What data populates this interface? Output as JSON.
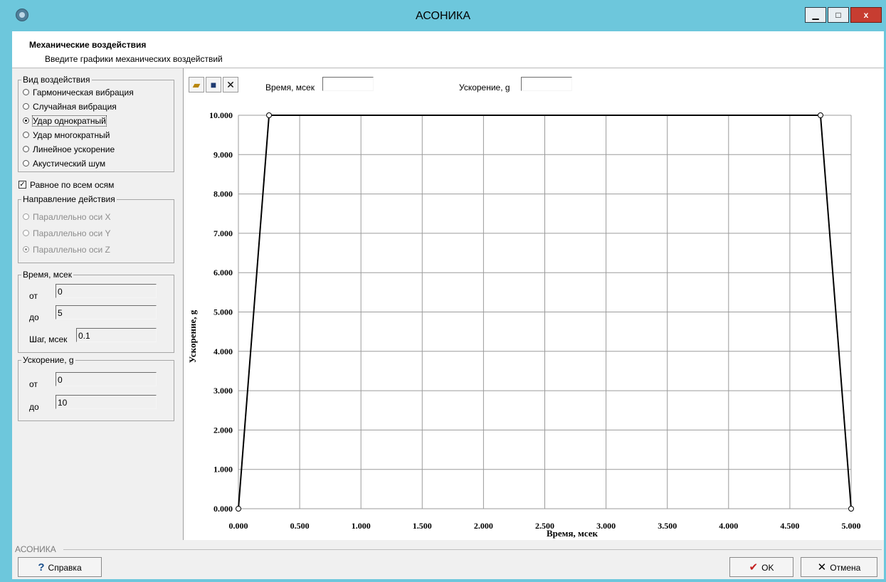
{
  "window": {
    "title": "АСОНИКА",
    "controls": {
      "minimize": "▁",
      "maximize": "□",
      "close": "x"
    }
  },
  "header": {
    "title": "Механические воздействия",
    "subtitle": "Введите графики механических воздействий"
  },
  "impact_type": {
    "title": "Вид воздействия",
    "options": [
      {
        "label": "Гармоническая вибрация",
        "checked": false
      },
      {
        "label": "Случайная вибрация",
        "checked": false
      },
      {
        "label": "Удар однократный",
        "checked": true
      },
      {
        "label": "Удар многократный",
        "checked": false
      },
      {
        "label": "Линейное ускорение",
        "checked": false
      },
      {
        "label": "Акустический шум",
        "checked": false
      }
    ]
  },
  "equal_axes": {
    "label": "Равное по всем осям",
    "checked": true
  },
  "direction": {
    "title": "Направление действия",
    "options": [
      {
        "label": "Параллельно оси X",
        "checked": false
      },
      {
        "label": "Параллельно оси Y",
        "checked": false
      },
      {
        "label": "Параллельно оси Z",
        "checked": true
      }
    ]
  },
  "time_group": {
    "title": "Время, мсек",
    "from_label": "от",
    "from_value": "0",
    "to_label": "до",
    "to_value": "5",
    "step_label": "Шаг, мсек",
    "step_value": "0.1"
  },
  "accel_group": {
    "title": "Ускорение, g",
    "from_label": "от",
    "from_value": "0",
    "to_label": "до",
    "to_value": "10"
  },
  "chart_toolbar": {
    "time_label": "Время, мсек",
    "time_value": "",
    "accel_label": "Ускорение, g",
    "accel_value": ""
  },
  "chart_data": {
    "type": "line",
    "xlabel": "Время, мсек",
    "ylabel": "Ускорение, g",
    "xlim": [
      0,
      5
    ],
    "ylim": [
      0,
      10
    ],
    "x_ticks": [
      "0.000",
      "0.500",
      "1.000",
      "1.500",
      "2.000",
      "2.500",
      "3.000",
      "3.500",
      "4.000",
      "4.500",
      "5.000"
    ],
    "y_ticks": [
      "0.000",
      "1.000",
      "2.000",
      "3.000",
      "4.000",
      "5.000",
      "6.000",
      "7.000",
      "8.000",
      "9.000",
      "10.000"
    ],
    "grid": true,
    "series": [
      {
        "x": [
          0,
          0.25,
          4.75,
          5.0
        ],
        "y": [
          0,
          10,
          10,
          0
        ]
      }
    ]
  },
  "footer": {
    "label": "АСОНИКА",
    "help_button": "Справка",
    "ok_button": "OK",
    "cancel_button": "Отмена"
  }
}
